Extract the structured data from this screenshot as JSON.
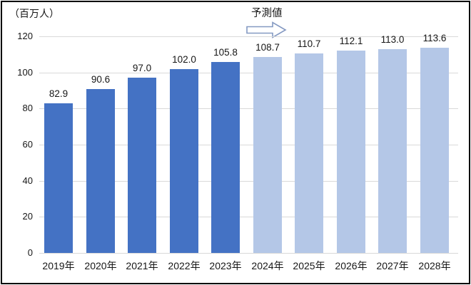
{
  "chart_data": {
    "type": "bar",
    "title": "",
    "unit_label": "（百万人）",
    "forecast_label": "予測値",
    "categories": [
      "2019年",
      "2020年",
      "2021年",
      "2022年",
      "2023年",
      "2024年",
      "2025年",
      "2026年",
      "2027年",
      "2028年"
    ],
    "values": [
      82.9,
      90.6,
      97.0,
      102.0,
      105.8,
      108.7,
      110.7,
      112.1,
      113.0,
      113.6
    ],
    "value_labels": [
      "82.9",
      "90.6",
      "97.0",
      "102.0",
      "105.8",
      "108.7",
      "110.7",
      "112.1",
      "113.0",
      "113.6"
    ],
    "forecast_start_index": 5,
    "y_ticks": [
      0,
      20,
      40,
      60,
      80,
      100,
      120
    ],
    "ylim": [
      0,
      120
    ],
    "grid": true,
    "legend": "none",
    "colors": {
      "actual_bar": "#4472C4",
      "forecast_bar": "#B4C7E7",
      "gridline": "#D9D9D9",
      "text": "#161616",
      "arrow_stroke": "#8499C2",
      "arrow_fill": "#FFFFFF",
      "frame": "#000000"
    }
  }
}
